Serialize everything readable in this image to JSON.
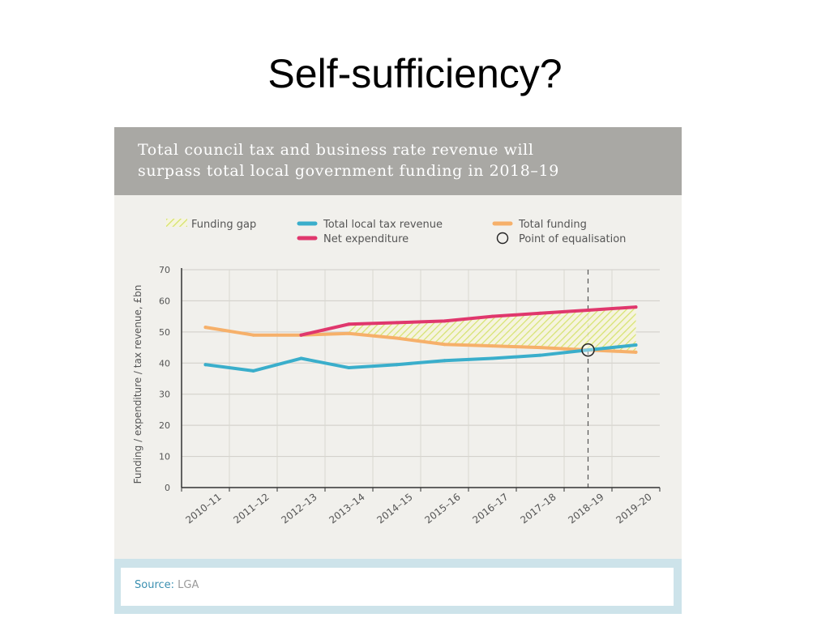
{
  "slide": {
    "title": "Self-sufficiency?"
  },
  "figure": {
    "header_lines": [
      "Total council tax and business rate revenue will",
      "surpass total local government funding in 2018–19"
    ],
    "source_label": "Source:",
    "source_value": "LGA"
  },
  "colors": {
    "tax": "#3aaecb",
    "funding": "#f6b06a",
    "expenditure": "#e0376d",
    "gap": "#d4e264"
  },
  "chart_data": {
    "type": "line",
    "title": "Total council tax and business rate revenue will surpass total local government funding in 2018–19",
    "xlabel": "",
    "ylabel": "Funding / expenditure / tax revenue, £bn",
    "ylim": [
      0,
      70
    ],
    "yticks": [
      0,
      10,
      20,
      30,
      40,
      50,
      60,
      70
    ],
    "grid": true,
    "categories": [
      "2010–11",
      "2011–12",
      "2012–13",
      "2013–14",
      "2014–15",
      "2015–16",
      "2016–17",
      "2017–18",
      "2018–19",
      "2019–20"
    ],
    "series": [
      {
        "name": "Total local tax revenue",
        "color": "#3aaecb",
        "values": [
          39.5,
          37.5,
          41.5,
          38.5,
          39.5,
          40.8,
          41.5,
          42.5,
          44.2,
          45.8
        ]
      },
      {
        "name": "Total funding",
        "color": "#f6b06a",
        "values": [
          51.5,
          49,
          49,
          49.5,
          48,
          46,
          45.5,
          45,
          44.2,
          43.5
        ]
      },
      {
        "name": "Net expenditure",
        "color": "#e0376d",
        "values": [
          null,
          null,
          49,
          52.5,
          53,
          53.5,
          55,
          56,
          57,
          58
        ]
      }
    ],
    "legend": [
      {
        "name": "Funding gap",
        "kind": "hatch"
      },
      {
        "name": "Total local tax revenue",
        "kind": "line",
        "color": "#3aaecb"
      },
      {
        "name": "Total funding",
        "kind": "line",
        "color": "#f6b06a"
      },
      {
        "name": "Net expenditure",
        "kind": "line",
        "color": "#e0376d"
      },
      {
        "name": "Point of equalisation",
        "kind": "circle"
      }
    ],
    "legend_position": "top",
    "equalisation_point": {
      "category": "2018–19",
      "value": 44.2
    },
    "funding_gap_range": [
      "2013–14",
      "2019–20"
    ]
  }
}
